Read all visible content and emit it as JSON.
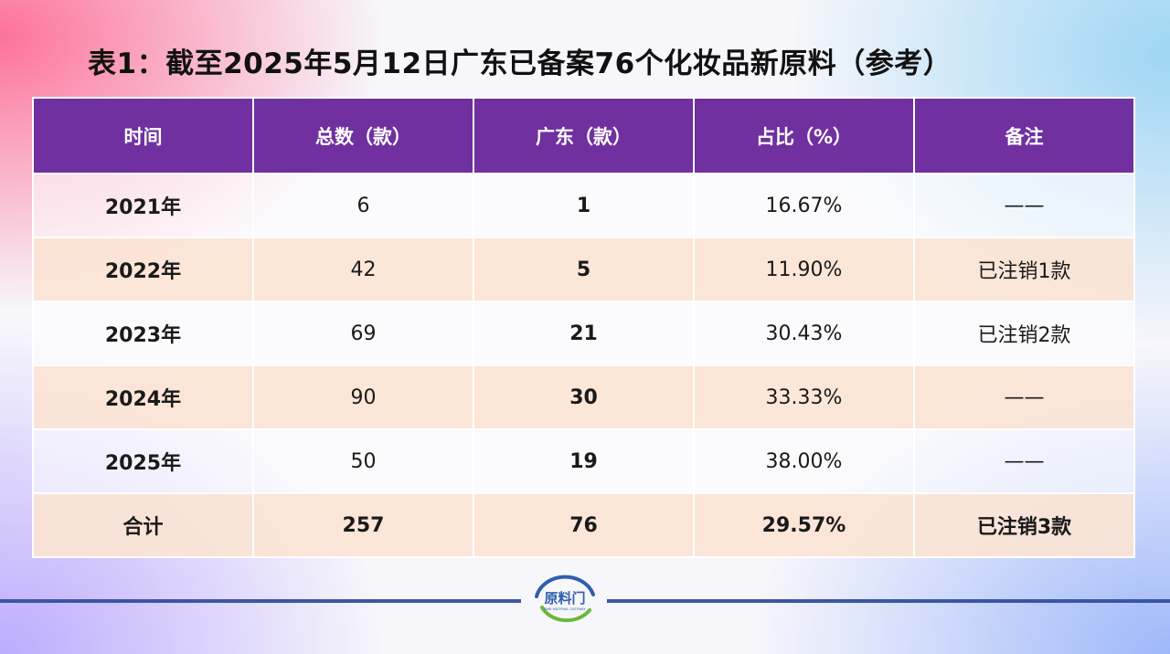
{
  "title": "表1：截至2025年5月12日广东已备案76个化妆品新原料（参考）",
  "table": {
    "headers": [
      "时间",
      "总数（款）",
      "广东（款）",
      "占比（%）",
      "备注"
    ],
    "rows": [
      {
        "year": "2021年",
        "total": "6",
        "guangdong": "1",
        "ratio": "16.67%",
        "note": "——"
      },
      {
        "year": "2022年",
        "total": "42",
        "guangdong": "5",
        "ratio": "11.90%",
        "note": "已注销1款"
      },
      {
        "year": "2023年",
        "total": "69",
        "guangdong": "21",
        "ratio": "30.43%",
        "note": "已注销2款"
      },
      {
        "year": "2024年",
        "total": "90",
        "guangdong": "30",
        "ratio": "33.33%",
        "note": "——"
      },
      {
        "year": "2025年",
        "total": "50",
        "guangdong": "19",
        "ratio": "38.00%",
        "note": "——"
      }
    ],
    "total_row": {
      "label": "合计",
      "total": "257",
      "guangdong": "76",
      "ratio": "29.57%",
      "note": "已注销3款"
    }
  },
  "logo": {
    "text": "原料门",
    "subtext": "RAW MATERIAL GATEWAY"
  },
  "colors": {
    "header": "#7030a0",
    "highlight": "#c00000",
    "row_alt": "#fbe4d5",
    "footer_line": "#3a56a6"
  }
}
